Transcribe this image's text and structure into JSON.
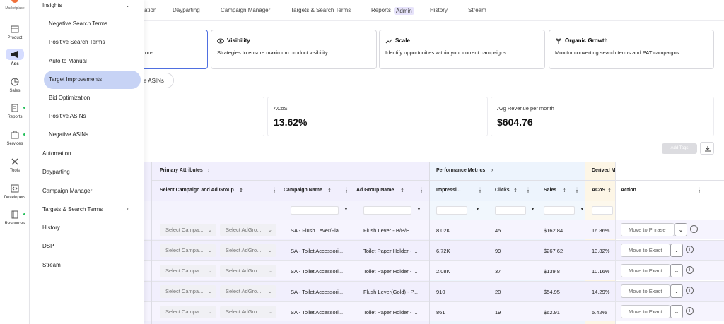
{
  "rail": {
    "brand_label": "Marketplace",
    "items": [
      {
        "label": "Product",
        "icon": "box-icon"
      },
      {
        "label": "Ads",
        "icon": "megaphone-icon",
        "active": true
      },
      {
        "label": "Sales",
        "icon": "pie-chart-icon"
      },
      {
        "label": "Reports",
        "icon": "report-icon",
        "dot": true
      },
      {
        "label": "Services",
        "icon": "briefcase-icon",
        "dot": true
      },
      {
        "label": "Tools",
        "icon": "tools-icon"
      },
      {
        "label": "Developers",
        "icon": "code-icon"
      },
      {
        "label": "Resources",
        "icon": "book-icon",
        "dot": true
      }
    ]
  },
  "menu": {
    "insights_label": "Insights",
    "sub_items": [
      "Negative Search Terms",
      "Positive Search Terms",
      "Auto to Manual",
      "Target Improvements",
      "Bid Optimization",
      "Positive ASINs",
      "Negative ASINs"
    ],
    "active_sub": "Target Improvements",
    "items": [
      "Automation",
      "Dayparting",
      "Campaign Manager",
      "Targets & Search Terms",
      "History",
      "DSP",
      "Stream"
    ]
  },
  "topnav": {
    "items": [
      "ation",
      "Dayparting",
      "Campaign Manager",
      "Targets & Search Terms",
      "Reports",
      "History",
      "Stream"
    ],
    "admin_badge": "Admin"
  },
  "cards": [
    {
      "title": "",
      "desc": "on-",
      "selected": true
    },
    {
      "title": "Visibility",
      "desc": "Strategies to ensure maximum product visibility.",
      "icon": "eye-icon"
    },
    {
      "title": "Scale",
      "desc": "Identify opportunities within your current campaigns.",
      "icon": "trend-up-icon"
    },
    {
      "title": "Organic Growth",
      "desc": "Monitor converting search terms and PAT campaigns.",
      "icon": "sprout-icon"
    }
  ],
  "pill_label": "e ASINs",
  "stats": [
    {
      "label": "ACoS",
      "value": "13.62%"
    },
    {
      "label": "Avg Revenue per month",
      "value": "$604.76"
    }
  ],
  "toolbar": {
    "add_tags": "Add Tags"
  },
  "table": {
    "groups": {
      "primary": "Primary Attributes",
      "performance": "Performance Metrics",
      "derived": "Derived M"
    },
    "headers": {
      "campaign_adgroup": "Select Campaign and Ad Group",
      "campaign_name": "Campaign Name",
      "adgroup_name": "Ad Group Name",
      "impressions": "Impressi...",
      "clicks": "Clicks",
      "sales": "Sales",
      "acos": "ACoS",
      "action": "Action"
    },
    "rows": [
      {
        "sel_campaign": "Select Campa...",
        "sel_adgroup": "Select AdGro...",
        "campaign": "SA - Flush Lever/Fla...",
        "adgroup": "Flush Lever - B/P/E",
        "impressions": "8.02K",
        "clicks": "45",
        "sales": "$162.84",
        "acos": "16.86%",
        "action": "Move to Phrase"
      },
      {
        "sel_campaign": "Select Campa...",
        "sel_adgroup": "Select AdGro...",
        "campaign": "SA - Toilet Accessori...",
        "adgroup": "Toilet Paper Holder - ...",
        "impressions": "6.72K",
        "clicks": "99",
        "sales": "$267.62",
        "acos": "13.82%",
        "action": "Move to Exact"
      },
      {
        "sel_campaign": "Select Campa...",
        "sel_adgroup": "Select AdGro...",
        "campaign": "SA - Toilet Accessori...",
        "adgroup": "Toilet Paper Holder - ...",
        "impressions": "2.08K",
        "clicks": "37",
        "sales": "$139.8",
        "acos": "10.16%",
        "action": "Move to Exact"
      },
      {
        "sel_campaign": "Select Campa...",
        "sel_adgroup": "Select AdGro...",
        "campaign": "SA - Toilet Accessori...",
        "adgroup": "Flush Lever(Gold) - P...",
        "impressions": "910",
        "clicks": "20",
        "sales": "$54.95",
        "acos": "14.29%",
        "action": "Move to Exact"
      },
      {
        "sel_campaign": "Select Campa...",
        "sel_adgroup": "Select AdGro...",
        "campaign": "SA - Toilet Accessori...",
        "adgroup": "Toilet Paper Holder - ...",
        "impressions": "861",
        "clicks": "19",
        "sales": "$62.91",
        "acos": "5.42%",
        "action": "Move to Exact"
      }
    ]
  },
  "colors": {
    "accent": "#4f6fe0",
    "primary_bg": "#f1effd",
    "perf_bg": "#edf4fd",
    "derived_bg": "#fdf6e6",
    "menu_highlight": "#c7d3f5",
    "status_dot": "#25c05b"
  }
}
